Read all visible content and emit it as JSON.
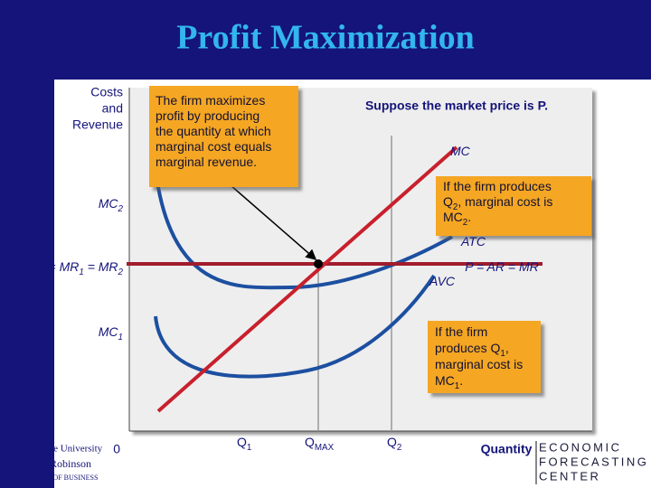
{
  "title": "Profit Maximization",
  "y_axis_label": [
    "Costs",
    "and",
    "Revenue"
  ],
  "origin": "0",
  "x_axis_label": "Quantity",
  "note": "Suppose the market price is P.",
  "callouts": [
    {
      "lines": [
        [
          {
            "text": "The firm maximizes"
          }
        ],
        [
          {
            "text": "profit by producing"
          }
        ],
        [
          {
            "text": "the quantity at which"
          }
        ],
        [
          {
            "text": "marginal cost equals"
          }
        ],
        [
          {
            "text": "marginal revenue."
          }
        ]
      ]
    },
    {
      "lines": [
        [
          {
            "text": "If the firm produces"
          }
        ],
        [
          {
            "text": "Q"
          },
          {
            "text": "2",
            "sub": true
          },
          {
            "text": ", marginal cost is"
          }
        ],
        [
          {
            "text": "MC"
          },
          {
            "text": "2",
            "sub": true
          },
          {
            "text": "."
          }
        ]
      ]
    },
    {
      "lines": [
        [
          {
            "text": "If the firm"
          }
        ],
        [
          {
            "text": "produces Q"
          },
          {
            "text": "1",
            "sub": true
          },
          {
            "text": ","
          }
        ],
        [
          {
            "text": "marginal cost is"
          }
        ],
        [
          {
            "text": "MC"
          },
          {
            "text": "1",
            "sub": true
          },
          {
            "text": "."
          }
        ]
      ]
    }
  ],
  "curve_labels": [
    [
      {
        "text": "MC"
      }
    ],
    [
      {
        "text": "ATC"
      }
    ],
    [
      {
        "text": "AVC"
      }
    ],
    [
      {
        "text": "P = AR = MR"
      }
    ]
  ],
  "y_labels": [
    [
      {
        "text": "MC"
      },
      {
        "text": "2",
        "sub": true
      }
    ],
    [
      {
        "text": "P = MR"
      },
      {
        "text": "1",
        "sub": true
      },
      {
        "text": " = MR"
      },
      {
        "text": "2",
        "sub": true
      }
    ],
    [
      {
        "text": "MC"
      },
      {
        "text": "1",
        "sub": true
      }
    ]
  ],
  "x_labels": [
    [
      {
        "text": "Q"
      },
      {
        "text": "1",
        "sub": true
      }
    ],
    [
      {
        "text": "Q"
      },
      {
        "text": "MAX",
        "sub": true
      }
    ],
    [
      {
        "text": "Q"
      },
      {
        "text": "2",
        "sub": true
      }
    ]
  ],
  "logos": {
    "university": [
      "Georgia State University",
      "J. Mack Robinson",
      "COLLEGE OF BUSINESS"
    ],
    "center": [
      "ECONOMIC",
      "FORECASTING",
      "CENTER"
    ]
  }
}
